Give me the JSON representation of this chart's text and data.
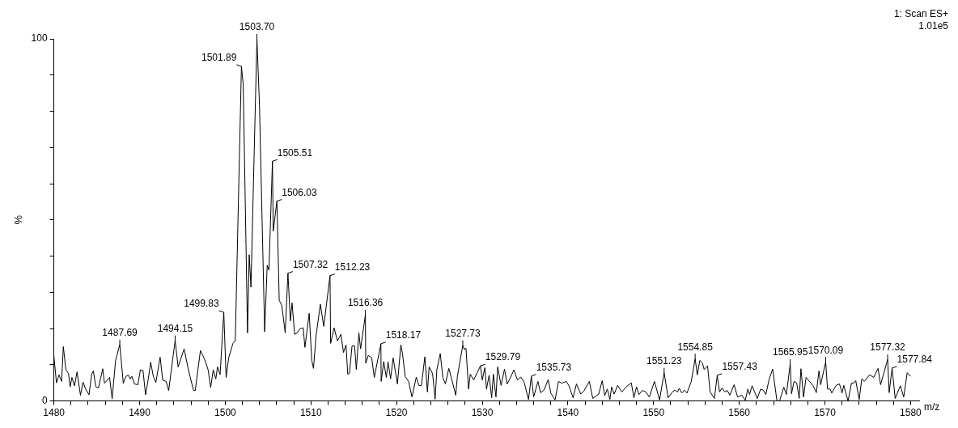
{
  "chart_data": {
    "type": "line",
    "xlabel": "m/z",
    "ylabel": "%",
    "color": "#000000",
    "x": [
      1480.0,
      1480.3,
      1480.6,
      1480.9,
      1481.1,
      1481.4,
      1481.7,
      1481.9,
      1482.1,
      1482.4,
      1482.7,
      1483.1,
      1483.4,
      1483.7,
      1484.1,
      1484.4,
      1484.6,
      1484.9,
      1485.2,
      1485.7,
      1485.9,
      1486.5,
      1486.8,
      1487.2,
      1487.69,
      1488.1,
      1488.4,
      1488.7,
      1488.9,
      1489.1,
      1489.4,
      1489.8,
      1490.1,
      1490.4,
      1490.7,
      1491.0,
      1491.3,
      1491.6,
      1491.9,
      1492.4,
      1492.7,
      1493.1,
      1493.4,
      1494.15,
      1494.5,
      1495.2,
      1495.7,
      1496.3,
      1496.5,
      1497.1,
      1497.6,
      1498.0,
      1498.3,
      1498.6,
      1498.9,
      1499.1,
      1499.4,
      1499.83,
      1500.1,
      1500.4,
      1500.9,
      1501.17,
      1501.89,
      1502.1,
      1502.6,
      1502.8,
      1503.0,
      1503.7,
      1504.0,
      1504.6,
      1504.9,
      1505.1,
      1505.51,
      1505.6,
      1506.03,
      1506.3,
      1506.6,
      1507.0,
      1507.32,
      1507.6,
      1507.8,
      1508.1,
      1508.4,
      1508.7,
      1509.1,
      1509.3,
      1509.8,
      1510.1,
      1510.3,
      1510.6,
      1511.1,
      1511.5,
      1512.23,
      1512.3,
      1512.7,
      1513.1,
      1513.5,
      1513.8,
      1514.1,
      1514.3,
      1514.5,
      1514.8,
      1515.1,
      1515.3,
      1515.6,
      1515.8,
      1516.36,
      1516.4,
      1516.7,
      1517.1,
      1517.4,
      1518.17,
      1518.2,
      1518.5,
      1518.8,
      1519.0,
      1519.3,
      1519.6,
      1520.1,
      1520.5,
      1520.7,
      1521.0,
      1521.4,
      1521.8,
      1522.3,
      1522.6,
      1522.9,
      1523.3,
      1523.6,
      1523.8,
      1524.2,
      1524.5,
      1524.7,
      1525.1,
      1525.4,
      1525.7,
      1526.1,
      1526.5,
      1526.9,
      1527.1,
      1527.73,
      1527.9,
      1528.1,
      1528.4,
      1528.6,
      1529.0,
      1529.79,
      1530.0,
      1530.3,
      1530.5,
      1530.8,
      1531.1,
      1531.3,
      1531.6,
      1531.8,
      1532.2,
      1532.6,
      1532.9,
      1533.3,
      1533.7,
      1534.1,
      1534.5,
      1534.9,
      1535.4,
      1535.73,
      1536.0,
      1536.5,
      1536.8,
      1537.2,
      1537.7,
      1538.0,
      1538.5,
      1538.9,
      1539.3,
      1539.8,
      1540.1,
      1540.6,
      1541.0,
      1541.5,
      1541.9,
      1542.5,
      1542.9,
      1543.6,
      1544.0,
      1544.3,
      1544.6,
      1544.9,
      1545.1,
      1545.4,
      1545.8,
      1546.3,
      1546.8,
      1547.4,
      1547.7,
      1548.0,
      1548.3,
      1548.7,
      1549.1,
      1549.5,
      1550.1,
      1550.7,
      1551.23,
      1551.7,
      1552.2,
      1552.5,
      1552.8,
      1553.0,
      1553.3,
      1553.6,
      1553.9,
      1554.4,
      1554.85,
      1555.1,
      1555.4,
      1555.7,
      1555.9,
      1556.3,
      1556.6,
      1557.1,
      1557.43,
      1557.7,
      1558.0,
      1558.3,
      1558.6,
      1558.9,
      1559.4,
      1559.8,
      1560.3,
      1560.7,
      1561.0,
      1561.2,
      1561.5,
      1562.1,
      1562.5,
      1562.8,
      1563.1,
      1563.5,
      1563.9,
      1564.4,
      1564.7,
      1565.2,
      1565.5,
      1565.95,
      1566.1,
      1566.4,
      1566.7,
      1567.0,
      1567.2,
      1567.5,
      1567.8,
      1568.2,
      1568.6,
      1569.0,
      1569.3,
      1569.5,
      1570.09,
      1570.3,
      1570.6,
      1570.8,
      1571.3,
      1571.7,
      1572.0,
      1572.2,
      1572.7,
      1573.1,
      1573.4,
      1573.6,
      1574.0,
      1574.3,
      1574.6,
      1575.2,
      1575.7,
      1576.2,
      1576.5,
      1577.32,
      1577.5,
      1577.84,
      1578.2,
      1578.8,
      1579.2,
      1579.6,
      1580.0
    ],
    "values": [
      12.4,
      5.0,
      7.2,
      5.4,
      15.0,
      8.6,
      7.6,
      3.9,
      6.5,
      4.2,
      8.0,
      1.6,
      5.2,
      3.3,
      1.7,
      7.3,
      8.3,
      3.9,
      3.6,
      8.9,
      4.9,
      6.5,
      0.6,
      11.2,
      15.6,
      4.9,
      6.8,
      7.1,
      6.1,
      6.8,
      4.7,
      4.5,
      8.6,
      8.4,
      1.7,
      5.8,
      10.7,
      6.8,
      5.1,
      12.1,
      5.8,
      5.4,
      2.9,
      16.7,
      9.4,
      14.4,
      8.6,
      2.9,
      2.9,
      13.9,
      11.5,
      8.6,
      3.7,
      8.6,
      6.1,
      9.4,
      7.3,
      24.5,
      6.5,
      11.9,
      15.9,
      16.6,
      92.4,
      87.3,
      18.8,
      40.4,
      31.4,
      100,
      81.5,
      19.1,
      37.5,
      36.1,
      66.2,
      46.9,
      55.2,
      27.8,
      26.4,
      18.8,
      35.3,
      22.1,
      27.1,
      18.4,
      18.8,
      19.9,
      20.2,
      14.8,
      24.2,
      11.2,
      9.0,
      18.0,
      26.7,
      20.6,
      34.6,
      15.9,
      20.2,
      16.6,
      18.4,
      13.4,
      15.5,
      7.4,
      7.6,
      15.2,
      15.2,
      8.7,
      18.8,
      14.4,
      23.8,
      10.4,
      12.6,
      11.9,
      6.5,
      15.8,
      5.4,
      10.9,
      6.5,
      10.8,
      6.1,
      11.9,
      4.7,
      15.5,
      12.9,
      6.8,
      5.4,
      1.1,
      6.6,
      4.3,
      4.2,
      12.2,
      2.5,
      9.4,
      7.6,
      0.5,
      8.6,
      13.1,
      6.5,
      4.7,
      9.0,
      5.4,
      1.6,
      6.8,
      15.4,
      14.2,
      14.6,
      3.3,
      7.4,
      5.8,
      9.7,
      5.8,
      9.2,
      3.3,
      7.1,
      0.9,
      7.4,
      1.1,
      9.4,
      4.3,
      8.8,
      4.7,
      6.5,
      8.6,
      5.8,
      6.6,
      5.1,
      0.4,
      6.8,
      1.1,
      5.4,
      2.3,
      3.0,
      5.9,
      2.2,
      0.3,
      5.4,
      4.9,
      5.4,
      4.3,
      0.9,
      4.7,
      1.9,
      2.9,
      5.4,
      0.7,
      1.9,
      5.6,
      1.5,
      3.3,
      0.4,
      3.9,
      1.9,
      4.3,
      2.5,
      3.9,
      5.0,
      0.9,
      3.9,
      1.8,
      2.9,
      2.5,
      1.1,
      5.4,
      0.3,
      7.8,
      0.9,
      2.5,
      3.0,
      2.5,
      3.5,
      2.2,
      3.0,
      2.2,
      5.4,
      11.7,
      7.2,
      11.2,
      10.5,
      8.7,
      9.7,
      2.5,
      0.7,
      7.1,
      2.5,
      3.6,
      2.5,
      2.9,
      1.6,
      4.5,
      1.1,
      1.6,
      0.2,
      3.3,
      1.8,
      4.2,
      0.7,
      3.3,
      3.0,
      1.8,
      6.1,
      8.8,
      0,
      0,
      3.8,
      1.8,
      10.2,
      2.0,
      5.4,
      5.0,
      0.7,
      8.9,
      1.1,
      6.5,
      5.4,
      4.3,
      2.3,
      8.3,
      4.5,
      10.8,
      3.3,
      3.3,
      2.2,
      4.3,
      4.7,
      2.2,
      4.3,
      0,
      4.9,
      5.0,
      5.6,
      0.4,
      6.1,
      5.4,
      7.2,
      6.5,
      9.0,
      4.5,
      11.5,
      2.3,
      9.1,
      0.7,
      4.2,
      1.1,
      7.8,
      6.8
    ],
    "xlim": [
      1480,
      1581
    ],
    "ylim": [
      0,
      100
    ],
    "xticks": [
      1480,
      {
        "value": 1482,
        "label": null
      },
      {
        "value": 1484,
        "label": null
      },
      {
        "value": 1486,
        "label": null
      },
      {
        "value": 1488,
        "label": null
      },
      1490,
      {
        "value": 1492,
        "label": null
      },
      {
        "value": 1494,
        "label": null
      },
      {
        "value": 1496,
        "label": null
      },
      {
        "value": 1498,
        "label": null
      },
      1500,
      {
        "value": 1502,
        "label": null
      },
      {
        "value": 1504,
        "label": null
      },
      {
        "value": 1506,
        "label": null
      },
      {
        "value": 1508,
        "label": null
      },
      1510,
      {
        "value": 1512,
        "label": null
      },
      {
        "value": 1514,
        "label": null
      },
      {
        "value": 1516,
        "label": null
      },
      {
        "value": 1518,
        "label": null
      },
      1520,
      {
        "value": 1522,
        "label": null
      },
      {
        "value": 1524,
        "label": null
      },
      {
        "value": 1526,
        "label": null
      },
      {
        "value": 1528,
        "label": null
      },
      1530,
      {
        "value": 1532,
        "label": null
      },
      {
        "value": 1534,
        "label": null
      },
      {
        "value": 1536,
        "label": null
      },
      {
        "value": 1538,
        "label": null
      },
      1540,
      {
        "value": 1542,
        "label": null
      },
      {
        "value": 1544,
        "label": null
      },
      {
        "value": 1546,
        "label": null
      },
      {
        "value": 1548,
        "label": null
      },
      1550,
      {
        "value": 1552,
        "label": null
      },
      {
        "value": 1554,
        "label": null
      },
      {
        "value": 1556,
        "label": null
      },
      {
        "value": 1558,
        "label": null
      },
      1560,
      {
        "value": 1562,
        "label": null
      },
      {
        "value": 1564,
        "label": null
      },
      {
        "value": 1566,
        "label": null
      },
      {
        "value": 1568,
        "label": null
      },
      1570,
      {
        "value": 1572,
        "label": null
      },
      {
        "value": 1574,
        "label": null
      },
      {
        "value": 1576,
        "label": null
      },
      {
        "value": 1578,
        "label": null
      },
      1580
    ],
    "yticks": [
      0,
      {
        "value": 10,
        "label": null
      },
      {
        "value": 20,
        "label": null
      },
      {
        "value": 30,
        "label": null
      },
      {
        "value": 40,
        "label": null
      },
      {
        "value": 50,
        "label": null
      },
      {
        "value": 60,
        "label": null
      },
      {
        "value": 70,
        "label": null
      },
      {
        "value": 80,
        "label": null
      },
      {
        "value": 90,
        "label": null
      },
      100
    ],
    "annotations": [
      "1: Scan ES+",
      "1.01e5",
      {
        "text": "1487.69",
        "x": 1487.69,
        "y": 15.6
      },
      {
        "text": "1494.15",
        "x": 1494.15,
        "y": 16.7
      },
      {
        "text": "1499.83",
        "x": 1499.83,
        "y": 24.5
      },
      {
        "text": "1501.89",
        "x": 1501.89,
        "y": 92.4
      },
      {
        "text": "1503.70",
        "x": 1503.7,
        "y": 100
      },
      {
        "text": "1505.51",
        "x": 1505.51,
        "y": 66.2
      },
      {
        "text": "1506.03",
        "x": 1506.03,
        "y": 55.2
      },
      {
        "text": "1507.32",
        "x": 1507.32,
        "y": 35.3
      },
      {
        "text": "1512.23",
        "x": 1512.23,
        "y": 34.6
      },
      {
        "text": "1516.36",
        "x": 1516.36,
        "y": 23.8
      },
      {
        "text": "1518.17",
        "x": 1518.17,
        "y": 15.8
      },
      {
        "text": "1527.73",
        "x": 1527.73,
        "y": 15.4
      },
      {
        "text": "1529.79",
        "x": 1529.79,
        "y": 9.7
      },
      {
        "text": "1535.73",
        "x": 1535.73,
        "y": 6.9
      },
      {
        "text": "1551.23",
        "x": 1551.23,
        "y": 7.8
      },
      {
        "text": "1554.85",
        "x": 1554.85,
        "y": 11.7
      },
      {
        "text": "1557.43",
        "x": 1557.43,
        "y": 7.1
      },
      {
        "text": "1565.95",
        "x": 1565.95,
        "y": 10.2
      },
      {
        "text": "1570.09",
        "x": 1570.09,
        "y": 10.8
      },
      {
        "text": "1577.32",
        "x": 1577.32,
        "y": 11.5
      },
      {
        "text": "1577.84",
        "x": 1577.84,
        "y": 9.1
      }
    ]
  }
}
